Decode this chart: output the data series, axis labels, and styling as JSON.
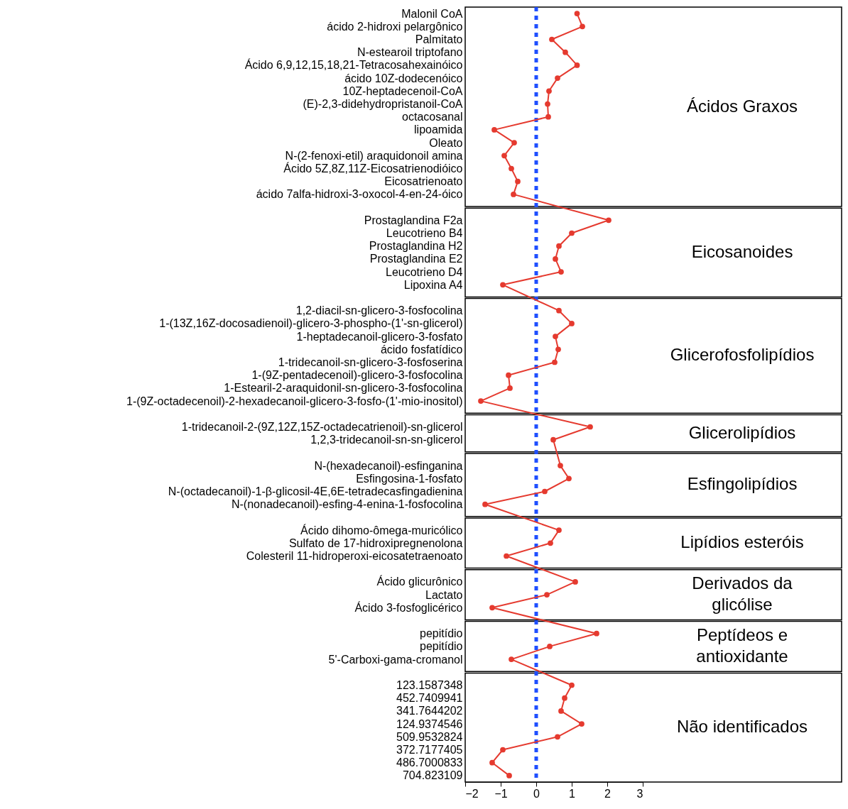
{
  "chart_data": {
    "type": "line",
    "orientation": "horizontal",
    "marker": "circle",
    "grid": false,
    "categories": [
      "Malonil CoA",
      "ácido 2-hidroxi pelargônico",
      "Palmitato",
      "N-estearoil triptofano",
      "Ácido 6,9,12,15,18,21-Tetracosahexainóico",
      "ácido 10Z-dodecenóico",
      "10Z-heptadecenoil-CoA",
      "(E)-2,3-didehydropristanoil-CoA",
      "octacosanal",
      "lipoamida",
      "Oleato",
      "N-(2-fenoxi-etil) araquidonoil amina",
      "Ácido 5Z,8Z,11Z-Eicosatrienodióico",
      "Eicosatrienoato",
      "ácido 7alfa-hidroxi-3-oxocol-4-en-24-óico",
      null,
      "Prostaglandina F2a",
      "Leucotrieno B4",
      "Prostaglandina H2",
      "Prostaglandina E2",
      "Leucotrieno D4",
      "Lipoxina A4",
      null,
      "1,2-diacil-sn-glicero-3-fosfocolina",
      "1-(13Z,16Z-docosadienoil)-glicero-3-phospho-(1'-sn-glicerol)",
      "1-heptadecanoil-glicero-3-fosfato",
      "ácido fosfatídico",
      "1-tridecanoil-sn-glicero-3-fosfoserina",
      "1-(9Z-pentadecenoil)-glicero-3-fosfocolina",
      "1-Estearil-2-araquidonil-sn-glicero-3-fosfocolina",
      "1-(9Z-octadecenoil)-2-hexadecanoil-glicero-3-fosfo-(1'-mio-inositol)",
      null,
      "1-tridecanoil-2-(9Z,12Z,15Z-octadecatrienoil)-sn-glicerol",
      "1,2,3-tridecanoil-sn-sn-glicerol",
      null,
      "N-(hexadecanoil)-esfinganina",
      "Esfingosina-1-fosfato",
      "N-(octadecanoil)-1-β-glicosil-4E,6E-tetradecasfingadienina",
      "N-(nonadecanoil)-esfing-4-enina-1-fosfocolina",
      null,
      "Ácido dihomo-ômega-muricólico",
      "Sulfato de 17-hidroxipregnenolona",
      "Colesteril 11-hidroperoxi-eicosatetraenoato",
      null,
      "Ácido glicurônico",
      "Lactato",
      "Ácido 3-fosfoglicérico",
      null,
      "pepitídio",
      "pepitídio",
      "5'-Carboxi-gama-cromanol",
      null,
      "123.1587348",
      "452.7409941",
      "341.7644202",
      "124.9374546",
      "509.9532824",
      "372.7177405",
      "486.7000833",
      "704.823109"
    ],
    "series": [
      {
        "color": "#e53a2f",
        "values": [
          1.15,
          1.3,
          0.44,
          0.82,
          1.15,
          0.6,
          0.36,
          0.32,
          0.34,
          -1.18,
          -0.62,
          -0.9,
          -0.7,
          -0.52,
          -0.64,
          null,
          2.04,
          1.0,
          0.64,
          0.54,
          0.7,
          -0.94,
          null,
          0.64,
          1.0,
          0.54,
          0.62,
          0.52,
          -0.78,
          -0.74,
          -1.56,
          null,
          1.52,
          0.48,
          null,
          0.68,
          0.92,
          0.24,
          -1.44,
          null,
          0.64,
          0.4,
          -0.84,
          null,
          1.1,
          0.3,
          -1.24,
          null,
          1.7,
          0.38,
          -0.7,
          null,
          1.0,
          0.8,
          0.7,
          1.28,
          0.6,
          -0.94,
          -1.24,
          -0.76
        ]
      }
    ],
    "xlim": [
      -2,
      3
    ],
    "xticks": [
      -2,
      -1,
      0,
      1,
      2,
      3
    ],
    "ref_lines": [
      {
        "axis": "x",
        "value": 0,
        "color": "#1f4fff",
        "line_style": "dashed"
      }
    ],
    "bands": [
      {
        "axis": "y",
        "from": "Malonil CoA",
        "to": "ácido 7alfa-hidroxi-3-oxocol-4-en-24-óico",
        "label": "Ácidos Graxos"
      },
      {
        "axis": "y",
        "from": "Prostaglandina F2a",
        "to": "Lipoxina A4",
        "label": "Eicosanoides"
      },
      {
        "axis": "y",
        "from": "1,2-diacil-sn-glicero-3-fosfocolina",
        "to": "1-(9Z-octadecenoil)-2-hexadecanoil-glicero-3-fosfo-(1'-mio-inositol)",
        "label": "Glicerofosfolipídios"
      },
      {
        "axis": "y",
        "from": "1-tridecanoil-2-(9Z,12Z,15Z-octadecatrienoil)-sn-glicerol",
        "to": "1,2,3-tridecanoil-sn-sn-glicerol",
        "label": "Glicerolipídios"
      },
      {
        "axis": "y",
        "from": "N-(hexadecanoil)-esfinganina",
        "to": "N-(nonadecanoil)-esfing-4-enina-1-fosfocolina",
        "label": "Esfingolipídios"
      },
      {
        "axis": "y",
        "from": "Ácido dihomo-ômega-muricólico",
        "to": "Colesteril 11-hidroperoxi-eicosatetraenoato",
        "label": "Lipídios esteróis"
      },
      {
        "axis": "y",
        "from": "Ácido glicurônico",
        "to": "Ácido 3-fosfoglicérico",
        "label": "Derivados da glicólise"
      },
      {
        "axis": "y",
        "from": "pepitídio",
        "to": "5'-Carboxi-gama-cromanol",
        "label": "Peptídeos e antioxidante"
      },
      {
        "axis": "y",
        "from": "123.1587348",
        "to": "704.823109",
        "label": "Não identificados"
      }
    ]
  }
}
